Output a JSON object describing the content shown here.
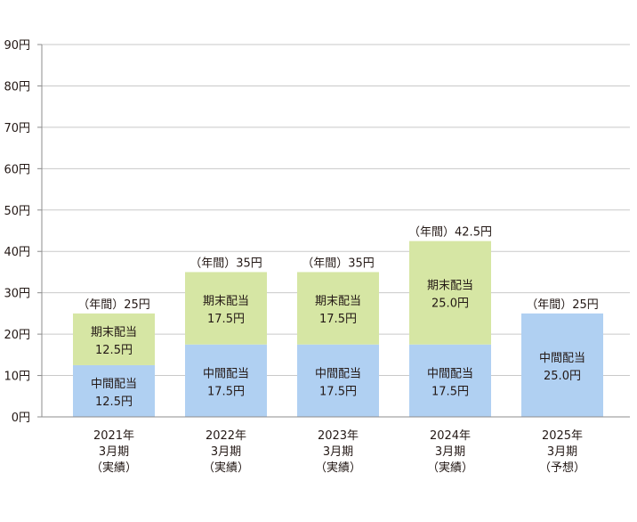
{
  "chart_data": {
    "type": "bar",
    "stacked": true,
    "grid": true,
    "ylim": [
      0,
      90
    ],
    "y_ticks": [
      {
        "value": 0,
        "label": "0円"
      },
      {
        "value": 10,
        "label": "10円"
      },
      {
        "value": 20,
        "label": "20円"
      },
      {
        "value": 30,
        "label": "30円"
      },
      {
        "value": 40,
        "label": "40円"
      },
      {
        "value": 50,
        "label": "50円"
      },
      {
        "value": 60,
        "label": "60円"
      },
      {
        "value": 70,
        "label": "70円"
      },
      {
        "value": 80,
        "label": "80円"
      },
      {
        "value": 90,
        "label": "90円"
      }
    ],
    "categories": [
      {
        "lines": [
          "2021年",
          "3月期",
          "（実績）"
        ]
      },
      {
        "lines": [
          "2022年",
          "3月期",
          "（実績）"
        ]
      },
      {
        "lines": [
          "2023年",
          "3月期",
          "（実績）"
        ]
      },
      {
        "lines": [
          "2024年",
          "3月期",
          "（実績）"
        ]
      },
      {
        "lines": [
          "2025年",
          "3月期",
          "（予想）"
        ]
      }
    ],
    "series": [
      {
        "name": "中間配当",
        "color": "#b0d0f2",
        "values": [
          12.5,
          17.5,
          17.5,
          17.5,
          25.0
        ],
        "labels": [
          "12.5円",
          "17.5円",
          "17.5円",
          "17.5円",
          "25.0円"
        ]
      },
      {
        "name": "期末配当",
        "color": "#d6e6a4",
        "values": [
          12.5,
          17.5,
          17.5,
          25.0,
          0
        ],
        "labels": [
          "12.5円",
          "17.5円",
          "17.5円",
          "25.0円",
          ""
        ]
      }
    ],
    "totals": [
      {
        "value": 25,
        "label": "（年間）25円"
      },
      {
        "value": 35,
        "label": "（年間）35円"
      },
      {
        "value": 35,
        "label": "（年間）35円"
      },
      {
        "value": 42.5,
        "label": "（年間）42.5円"
      },
      {
        "value": 25,
        "label": "（年間）25円"
      }
    ],
    "colors": {
      "grid": "#c9c9c9",
      "axis": "#8c8c8c",
      "text": "#231815"
    }
  }
}
